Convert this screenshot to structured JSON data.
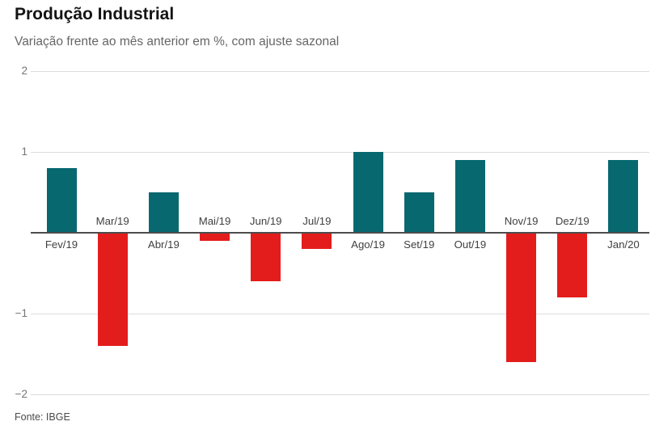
{
  "header": {
    "title": "Produção Industrial",
    "subtitle": "Variação frente ao mês anterior em %, com ajuste sazonal"
  },
  "chart_data": {
    "type": "bar",
    "title": "Produção Industrial",
    "subtitle": "Variação frente ao mês anterior em %, com ajuste sazonal",
    "categories": [
      "Fev/19",
      "Mar/19",
      "Abr/19",
      "Mai/19",
      "Jun/19",
      "Jul/19",
      "Ago/19",
      "Set/19",
      "Out/19",
      "Nov/19",
      "Dez/19",
      "Jan/20"
    ],
    "values": [
      0.8,
      -1.4,
      0.5,
      -0.1,
      -0.6,
      -0.2,
      1,
      0.5,
      0.9,
      -1.6,
      -0.8,
      0.9
    ],
    "xlabel": "",
    "ylabel": "",
    "ylim": [
      -2,
      2
    ],
    "yticks": [
      2,
      1,
      -1,
      -2
    ],
    "grid": true,
    "legend": false,
    "colors": {
      "positive": "#07686f",
      "negative": "#e31d1c",
      "gridline": "#dcdcdc",
      "zero_axis": "#4c4c4c"
    },
    "label_placement": "positive bars labeled below zero axis, negative bars labeled above zero axis",
    "source": "Fonte: IBGE"
  },
  "footer": {
    "source": "Fonte: IBGE"
  }
}
